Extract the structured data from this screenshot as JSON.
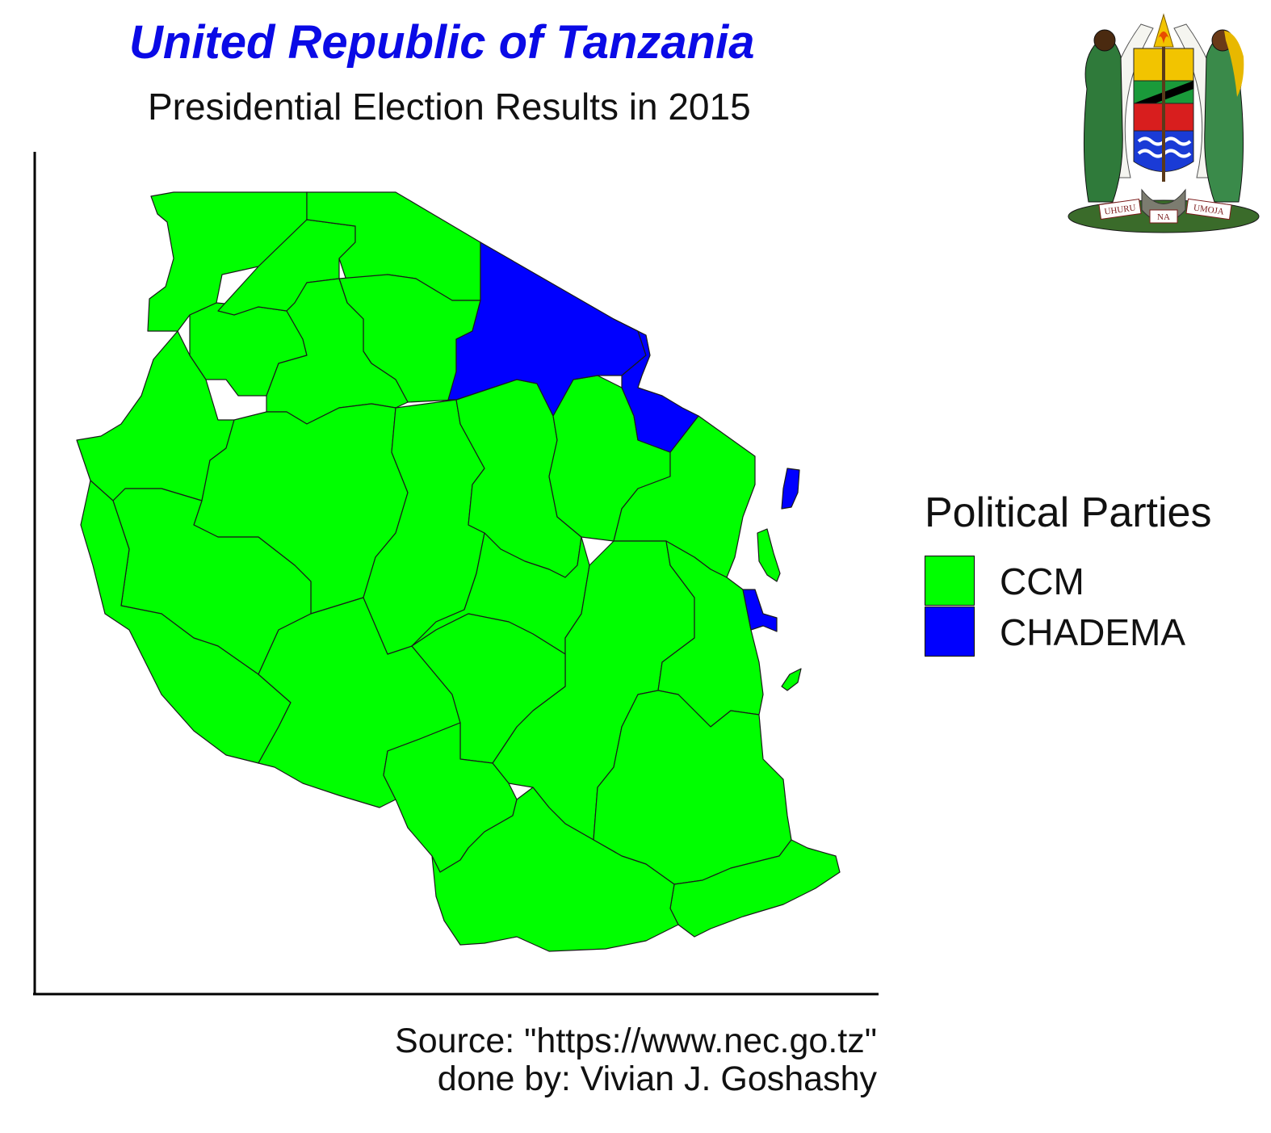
{
  "title": "United Republic of Tanzania",
  "subtitle": "Presidential Election Results in 2015",
  "colors": {
    "title": "#0a0ae6",
    "CCM": "#00ff00",
    "CHADEMA": "#0000ff",
    "border": "#1a1a1a",
    "axis": "#000000"
  },
  "emblem": {
    "motto_words": [
      "UHURU",
      "NA",
      "UMOJA"
    ]
  },
  "legend": {
    "title": "Political Parties",
    "items": [
      {
        "label": "CCM",
        "color": "#00ff00"
      },
      {
        "label": "CHADEMA",
        "color": "#0000ff"
      }
    ]
  },
  "regions": {
    "CCM": [
      "Kagera",
      "Geita",
      "Mwanza",
      "Mara",
      "Simiyu",
      "Shinyanga",
      "Kigoma",
      "Tabora",
      "Singida",
      "Manyara",
      "Tanga",
      "Dodoma",
      "Katavi",
      "Rukwa",
      "Mbeya",
      "Songwe",
      "Iringa",
      "Morogoro",
      "Pwani",
      "Njombe",
      "Ruvuma",
      "Lindi",
      "Mtwara",
      "Zanzibar South",
      "Mafia"
    ],
    "CHADEMA": [
      "Arusha",
      "Kilimanjaro",
      "Dar es Salaam",
      "Pemba North"
    ]
  },
  "caption": {
    "source": "Source: \"https://www.nec.go.tz\"",
    "author": "done by: Vivian J. Goshashy"
  }
}
